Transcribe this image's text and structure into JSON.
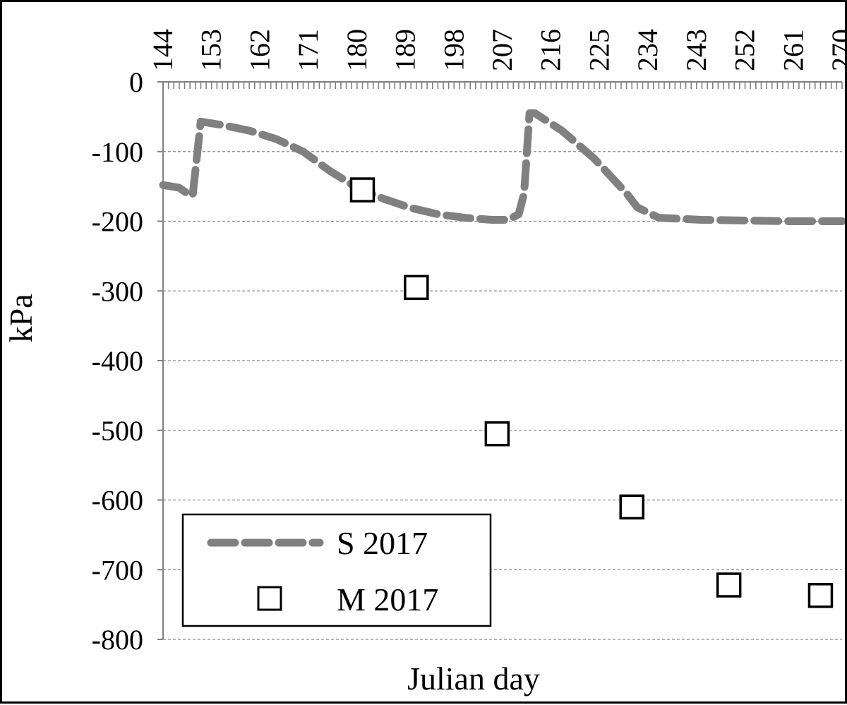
{
  "chart_data": {
    "type": "line",
    "title": "",
    "xlabel": "Julian day",
    "ylabel": "kPa",
    "xlim": [
      144,
      270
    ],
    "ylim": [
      -800,
      0
    ],
    "x_ticks": [
      144,
      153,
      162,
      171,
      180,
      189,
      198,
      207,
      216,
      225,
      234,
      243,
      252,
      261,
      270
    ],
    "y_ticks": [
      0,
      -100,
      -200,
      -300,
      -400,
      -500,
      -600,
      -700,
      -800
    ],
    "x_axis_position": "top",
    "grid": true,
    "legend_position": "bottom-left",
    "series": [
      {
        "name": "S 2017",
        "type": "line",
        "style": "dashed",
        "color": "#808080",
        "x": [
          144,
          147,
          148.5,
          149.5,
          151,
          155,
          160,
          165,
          170,
          175,
          180,
          185,
          190,
          195,
          200,
          205,
          208,
          210,
          211,
          212,
          213,
          218,
          224,
          230,
          232,
          236,
          244,
          252,
          260,
          270
        ],
        "y": [
          -148,
          -152,
          -160,
          -163,
          -57,
          -62,
          -70,
          -82,
          -100,
          -128,
          -152,
          -168,
          -181,
          -190,
          -195,
          -198,
          -198,
          -190,
          -160,
          -45,
          -45,
          -70,
          -110,
          -160,
          -180,
          -195,
          -198,
          -199,
          -200,
          -200
        ]
      },
      {
        "name": "M 2017",
        "type": "scatter",
        "marker": "hollow-square",
        "color": "#000000",
        "x": [
          181,
          191,
          206,
          231,
          249,
          266
        ],
        "y": [
          -155,
          -295,
          -505,
          -610,
          -722,
          -737
        ]
      }
    ]
  },
  "colors": {
    "grid": "#8a8a8a",
    "axis": "#808080",
    "s_line": "#808080",
    "marker_stroke": "#000000",
    "frame": "#000000"
  }
}
